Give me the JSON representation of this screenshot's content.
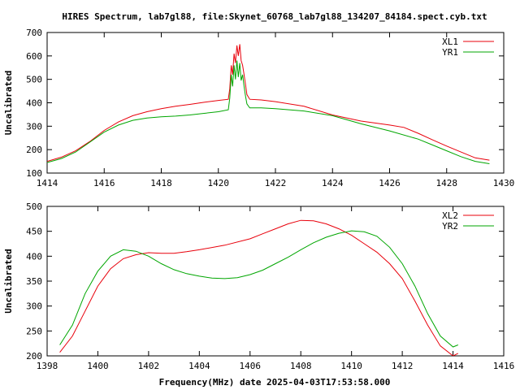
{
  "title": "HIRES Spectrum, lab7gl88, file:Skynet_60768_lab7gl88_134207_84184.spect.cyb.txt",
  "xlabel": "Frequency(MHz) date 2025-04-03T17:53:58.000",
  "chart_data": [
    {
      "type": "line",
      "ylabel": "Uncalibrated",
      "xlim": [
        1414,
        1430
      ],
      "ylim": [
        100,
        700
      ],
      "xticks": [
        1414,
        1416,
        1418,
        1420,
        1422,
        1424,
        1426,
        1428,
        1430
      ],
      "yticks": [
        100,
        200,
        300,
        400,
        500,
        600,
        700
      ],
      "legend_position": "top-right",
      "series": [
        {
          "name": "XL1",
          "color": "#e8000b",
          "points": [
            [
              1414.0,
              150
            ],
            [
              1414.5,
              168
            ],
            [
              1415.0,
              195
            ],
            [
              1415.5,
              235
            ],
            [
              1416.0,
              282
            ],
            [
              1416.5,
              318
            ],
            [
              1417.0,
              345
            ],
            [
              1417.5,
              362
            ],
            [
              1418.0,
              375
            ],
            [
              1418.5,
              385
            ],
            [
              1419.0,
              393
            ],
            [
              1419.5,
              402
            ],
            [
              1420.0,
              410
            ],
            [
              1420.35,
              415
            ],
            [
              1420.4,
              460
            ],
            [
              1420.45,
              560
            ],
            [
              1420.5,
              520
            ],
            [
              1420.55,
              610
            ],
            [
              1420.6,
              570
            ],
            [
              1420.65,
              645
            ],
            [
              1420.7,
              600
            ],
            [
              1420.75,
              650
            ],
            [
              1420.8,
              580
            ],
            [
              1420.85,
              560
            ],
            [
              1420.9,
              520
            ],
            [
              1420.95,
              480
            ],
            [
              1421.0,
              435
            ],
            [
              1421.1,
              415
            ],
            [
              1421.5,
              412
            ],
            [
              1422.0,
              405
            ],
            [
              1423.0,
              385
            ],
            [
              1424.0,
              348
            ],
            [
              1425.0,
              322
            ],
            [
              1426.0,
              305
            ],
            [
              1426.5,
              295
            ],
            [
              1427.0,
              270
            ],
            [
              1427.5,
              242
            ],
            [
              1428.0,
              215
            ],
            [
              1428.5,
              190
            ],
            [
              1429.0,
              165
            ],
            [
              1429.5,
              155
            ]
          ]
        },
        {
          "name": "YR1",
          "color": "#00a600",
          "points": [
            [
              1414.0,
              145
            ],
            [
              1414.5,
              162
            ],
            [
              1415.0,
              190
            ],
            [
              1415.5,
              232
            ],
            [
              1416.0,
              275
            ],
            [
              1416.5,
              305
            ],
            [
              1417.0,
              325
            ],
            [
              1417.5,
              335
            ],
            [
              1418.0,
              340
            ],
            [
              1418.5,
              343
            ],
            [
              1419.0,
              348
            ],
            [
              1419.5,
              355
            ],
            [
              1420.0,
              362
            ],
            [
              1420.35,
              370
            ],
            [
              1420.4,
              420
            ],
            [
              1420.45,
              520
            ],
            [
              1420.5,
              470
            ],
            [
              1420.55,
              560
            ],
            [
              1420.6,
              500
            ],
            [
              1420.65,
              580
            ],
            [
              1420.7,
              510
            ],
            [
              1420.75,
              570
            ],
            [
              1420.8,
              495
            ],
            [
              1420.85,
              520
            ],
            [
              1420.9,
              470
            ],
            [
              1420.95,
              430
            ],
            [
              1421.0,
              395
            ],
            [
              1421.1,
              378
            ],
            [
              1421.5,
              378
            ],
            [
              1422.0,
              375
            ],
            [
              1423.0,
              365
            ],
            [
              1424.0,
              345
            ],
            [
              1425.0,
              310
            ],
            [
              1426.0,
              280
            ],
            [
              1427.0,
              245
            ],
            [
              1427.5,
              220
            ],
            [
              1428.0,
              195
            ],
            [
              1428.5,
              170
            ],
            [
              1429.0,
              150
            ],
            [
              1429.5,
              140
            ]
          ]
        }
      ]
    },
    {
      "type": "line",
      "ylabel": "Uncalibrated",
      "xlim": [
        1398,
        1416
      ],
      "ylim": [
        200,
        500
      ],
      "xticks": [
        1398,
        1400,
        1402,
        1404,
        1406,
        1408,
        1410,
        1412,
        1414,
        1416
      ],
      "yticks": [
        200,
        250,
        300,
        350,
        400,
        450,
        500
      ],
      "legend_position": "top-right",
      "series": [
        {
          "name": "XL2",
          "color": "#e8000b",
          "points": [
            [
              1398.5,
              207
            ],
            [
              1399.0,
              240
            ],
            [
              1399.5,
              290
            ],
            [
              1400.0,
              340
            ],
            [
              1400.5,
              375
            ],
            [
              1401.0,
              395
            ],
            [
              1401.5,
              403
            ],
            [
              1402.0,
              407
            ],
            [
              1402.5,
              406
            ],
            [
              1403.0,
              406
            ],
            [
              1403.5,
              409
            ],
            [
              1404.0,
              413
            ],
            [
              1405.0,
              422
            ],
            [
              1406.0,
              435
            ],
            [
              1406.5,
              445
            ],
            [
              1407.0,
              455
            ],
            [
              1407.5,
              465
            ],
            [
              1408.0,
              472
            ],
            [
              1408.5,
              471
            ],
            [
              1409.0,
              465
            ],
            [
              1409.5,
              455
            ],
            [
              1410.0,
              442
            ],
            [
              1410.5,
              425
            ],
            [
              1411.0,
              408
            ],
            [
              1411.5,
              385
            ],
            [
              1412.0,
              355
            ],
            [
              1412.5,
              310
            ],
            [
              1413.0,
              262
            ],
            [
              1413.5,
              220
            ],
            [
              1414.0,
              200
            ],
            [
              1414.2,
              205
            ]
          ]
        },
        {
          "name": "YR2",
          "color": "#00a600",
          "points": [
            [
              1398.5,
              222
            ],
            [
              1399.0,
              262
            ],
            [
              1399.5,
              325
            ],
            [
              1400.0,
              370
            ],
            [
              1400.5,
              400
            ],
            [
              1401.0,
              413
            ],
            [
              1401.5,
              410
            ],
            [
              1402.0,
              400
            ],
            [
              1402.5,
              385
            ],
            [
              1403.0,
              373
            ],
            [
              1403.5,
              365
            ],
            [
              1404.0,
              360
            ],
            [
              1404.5,
              356
            ],
            [
              1405.0,
              355
            ],
            [
              1405.5,
              357
            ],
            [
              1406.0,
              363
            ],
            [
              1406.5,
              372
            ],
            [
              1407.0,
              385
            ],
            [
              1407.5,
              398
            ],
            [
              1408.0,
              413
            ],
            [
              1408.5,
              427
            ],
            [
              1409.0,
              438
            ],
            [
              1409.5,
              446
            ],
            [
              1410.0,
              451
            ],
            [
              1410.5,
              449
            ],
            [
              1411.0,
              440
            ],
            [
              1411.5,
              418
            ],
            [
              1412.0,
              385
            ],
            [
              1412.5,
              340
            ],
            [
              1413.0,
              285
            ],
            [
              1413.5,
              240
            ],
            [
              1414.0,
              218
            ],
            [
              1414.2,
              222
            ]
          ]
        }
      ]
    }
  ]
}
